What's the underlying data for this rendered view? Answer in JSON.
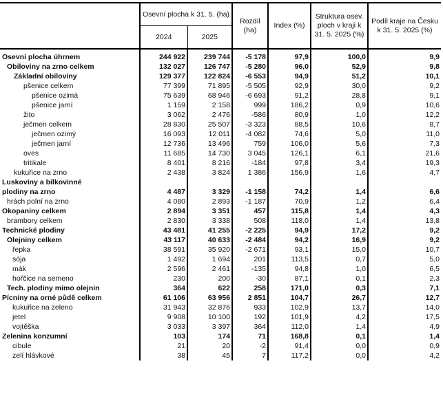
{
  "header": {
    "area_group": "Osevní plocha k 31. 5. (ha)",
    "year1": "2024",
    "year2": "2025",
    "diff": "Rozdíl (ha)",
    "index": "Index (%)",
    "structure": "Struktura osev. ploch v kraji k 31. 5. 2025 (%)",
    "share": "Podíl kraje na Česku k 31. 5. 2025 (%)"
  },
  "rows": [
    {
      "label": "Osevní plocha úhrnem",
      "level": 0,
      "bold": true,
      "v": [
        "244 922",
        "239 744",
        "-5 178",
        "97,9",
        "100,0",
        "9,9"
      ]
    },
    {
      "label": "Obiloviny na zrno celkem",
      "level": 1,
      "bold": true,
      "v": [
        "132 027",
        "126 747",
        "-5 280",
        "96,0",
        "52,9",
        "9,8"
      ]
    },
    {
      "label": "Základní obiloviny",
      "level": 2,
      "bold": true,
      "v": [
        "129 377",
        "122 824",
        "-6 553",
        "94,9",
        "51,2",
        "10,1"
      ]
    },
    {
      "label": "pšenice celkem",
      "level": 3,
      "bold": false,
      "v": [
        "77 399",
        "71 895",
        "-5 505",
        "92,9",
        "30,0",
        "9,2"
      ]
    },
    {
      "label": "pšenice ozimá",
      "level": 4,
      "bold": false,
      "v": [
        "75 639",
        "68 946",
        "-6 693",
        "91,2",
        "28,8",
        "9,1"
      ]
    },
    {
      "label": "pšenice jarní",
      "level": 4,
      "bold": false,
      "v": [
        "1 159",
        "2 158",
        "999",
        "186,2",
        "0,9",
        "10,6"
      ]
    },
    {
      "label": "žito",
      "level": 3,
      "bold": false,
      "v": [
        "3 062",
        "2 476",
        "-586",
        "80,9",
        "1,0",
        "12,2"
      ]
    },
    {
      "label": "ječmen celkem",
      "level": 3,
      "bold": false,
      "v": [
        "28 830",
        "25 507",
        "-3 323",
        "88,5",
        "10,6",
        "8,7"
      ]
    },
    {
      "label": "ječmen ozimý",
      "level": 4,
      "bold": false,
      "v": [
        "16 093",
        "12 011",
        "-4 082",
        "74,6",
        "5,0",
        "11,0"
      ]
    },
    {
      "label": "ječmen jarní",
      "level": 4,
      "bold": false,
      "v": [
        "12 736",
        "13 496",
        "759",
        "106,0",
        "5,6",
        "7,3"
      ]
    },
    {
      "label": "oves",
      "level": 3,
      "bold": false,
      "v": [
        "11 685",
        "14 730",
        "3 045",
        "126,1",
        "6,1",
        "21,6"
      ]
    },
    {
      "label": "tritikale",
      "level": 3,
      "bold": false,
      "v": [
        "8 401",
        "8 216",
        "-184",
        "97,8",
        "3,4",
        "19,3"
      ]
    },
    {
      "label": "kukuřice na zrno",
      "level": 2,
      "bold": false,
      "v": [
        "2 438",
        "3 824",
        "1 386",
        "156,9",
        "1,6",
        "4,7"
      ]
    },
    {
      "label": "Luskoviny a bílkovinné",
      "level": 0,
      "bold": true,
      "v": [
        "",
        "",
        "",
        "",
        "",
        ""
      ]
    },
    {
      "label": "plodiny na zrno",
      "level": 0,
      "bold": true,
      "v": [
        "4 487",
        "3 329",
        "-1 158",
        "74,2",
        "1,4",
        "6,6"
      ]
    },
    {
      "label": "hrách polní na zrno",
      "level": 1,
      "bold": false,
      "v": [
        "4 080",
        "2 893",
        "-1 187",
        "70,9",
        "1,2",
        "6,4"
      ]
    },
    {
      "label": "Okopaniny celkem",
      "level": 0,
      "bold": true,
      "v": [
        "2 894",
        "3 351",
        "457",
        "115,8",
        "1,4",
        "4,3"
      ]
    },
    {
      "label": "brambory celkem",
      "level": 1,
      "bold": false,
      "v": [
        "2 830",
        "3 338",
        "508",
        "118,0",
        "1,4",
        "13,8"
      ]
    },
    {
      "label": "Technické plodiny",
      "level": 0,
      "bold": true,
      "v": [
        "43 481",
        "41 255",
        "-2 225",
        "94,9",
        "17,2",
        "9,2"
      ]
    },
    {
      "label": "Olejniny celkem",
      "level": 1,
      "bold": true,
      "v": [
        "43 117",
        "40 633",
        "-2 484",
        "94,2",
        "16,9",
        "9,2"
      ]
    },
    {
      "label": "řepka",
      "level": 5,
      "bold": false,
      "v": [
        "38 591",
        "35 920",
        "-2 671",
        "93,1",
        "15,0",
        "10,7"
      ]
    },
    {
      "label": "sója",
      "level": 5,
      "bold": false,
      "v": [
        "1 492",
        "1 694",
        "201",
        "113,5",
        "0,7",
        "5,0"
      ]
    },
    {
      "label": "mák",
      "level": 5,
      "bold": false,
      "v": [
        "2 596",
        "2 461",
        "-135",
        "94,8",
        "1,0",
        "6,5"
      ]
    },
    {
      "label": "hořčice na semeno",
      "level": 5,
      "bold": false,
      "v": [
        "230",
        "200",
        "-30",
        "87,1",
        "0,1",
        "2,3"
      ]
    },
    {
      "label": "Tech. plodiny mimo olejnin",
      "level": 1,
      "bold": true,
      "v": [
        "364",
        "622",
        "258",
        "171,0",
        "0,3",
        "7,1"
      ]
    },
    {
      "label": "Pícniny na orné půdě celkem",
      "level": 0,
      "bold": true,
      "v": [
        "61 106",
        "63 956",
        "2 851",
        "104,7",
        "26,7",
        "12,7"
      ]
    },
    {
      "label": "kukuřice na zeleno",
      "level": 5,
      "bold": false,
      "v": [
        "31 943",
        "32 876",
        "933",
        "102,9",
        "13,7",
        "14,0"
      ]
    },
    {
      "label": "jetel",
      "level": 5,
      "bold": false,
      "v": [
        "9 908",
        "10 100",
        "192",
        "101,9",
        "4,2",
        "17,5"
      ]
    },
    {
      "label": "vojtěška",
      "level": 5,
      "bold": false,
      "v": [
        "3 033",
        "3 397",
        "364",
        "112,0",
        "1,4",
        "4,9"
      ]
    },
    {
      "label": "Zelenina konzumní",
      "level": 0,
      "bold": true,
      "v": [
        "103",
        "174",
        "71",
        "168,8",
        "0,1",
        "1,4"
      ]
    },
    {
      "label": "cibule",
      "level": 5,
      "bold": false,
      "v": [
        "21",
        "20",
        "-2",
        "91,4",
        "0,0",
        "0,9"
      ]
    },
    {
      "label": "zelí hlávkové",
      "level": 5,
      "bold": false,
      "v": [
        "38",
        "45",
        "7",
        "117,2",
        "0,0",
        "4,2"
      ]
    }
  ]
}
